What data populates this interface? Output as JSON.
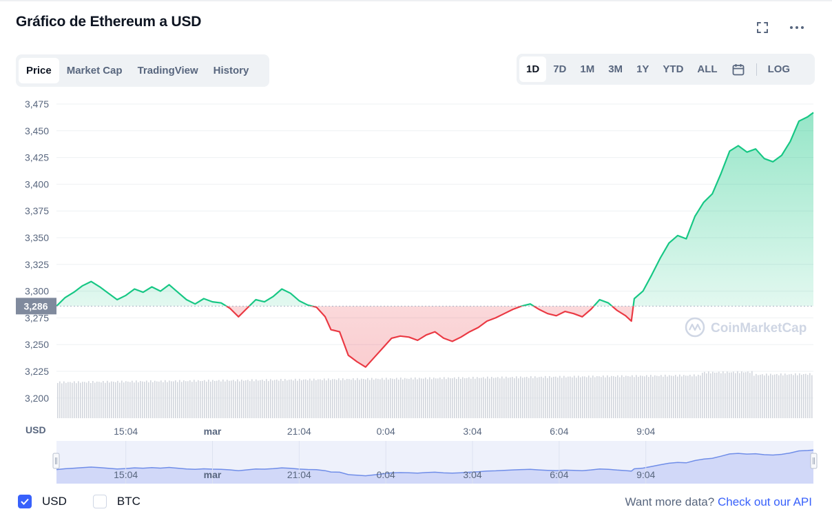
{
  "title": "Gráfico de Ethereum a USD",
  "header_icons": [
    "fullscreen-icon",
    "more-icon"
  ],
  "tabs": [
    {
      "label": "Price",
      "active": true
    },
    {
      "label": "Market Cap",
      "active": false
    },
    {
      "label": "TradingView",
      "active": false
    },
    {
      "label": "History",
      "active": false
    }
  ],
  "ranges": [
    {
      "label": "1D",
      "active": true
    },
    {
      "label": "7D",
      "active": false
    },
    {
      "label": "1M",
      "active": false
    },
    {
      "label": "3M",
      "active": false
    },
    {
      "label": "1Y",
      "active": false
    },
    {
      "label": "YTD",
      "active": false
    },
    {
      "label": "ALL",
      "active": false
    }
  ],
  "log_label": "LOG",
  "legend": {
    "usd_label": "USD",
    "btc_label": "BTC",
    "usd_checked": true,
    "btc_checked": false
  },
  "api_prompt": "Want more data?",
  "api_link": "Check out our API",
  "watermark": "CoinMarketCap",
  "colors": {
    "up": "#16c784",
    "down": "#ea3943",
    "accent": "#3861fb",
    "text_muted": "#58667e"
  },
  "chart_data": {
    "type": "line",
    "title": "Gráfico de Ethereum a USD",
    "ylabel": "USD",
    "ylim": [
      3187,
      3478
    ],
    "y_ticks": [
      "3,475",
      "3,450",
      "3,425",
      "3,400",
      "3,375",
      "3,350",
      "3,325",
      "3,300",
      "3,275",
      "3,250",
      "3,225",
      "3,200"
    ],
    "y_tick_values": [
      3475,
      3450,
      3425,
      3400,
      3375,
      3350,
      3325,
      3300,
      3275,
      3250,
      3225,
      3200
    ],
    "x_ticks": [
      "15:04",
      "mar",
      "21:04",
      "0:04",
      "3:04",
      "6:04",
      "9:04"
    ],
    "x_tick_hours": [
      2.4,
      5.4,
      8.4,
      11.4,
      14.4,
      17.4,
      20.4
    ],
    "x_range_hours": [
      0,
      24
    ],
    "baseline": 3286,
    "baseline_label": "3,286",
    "price_points": [
      [
        0,
        3286
      ],
      [
        0.3,
        3294
      ],
      [
        0.6,
        3299
      ],
      [
        0.9,
        3305
      ],
      [
        1.2,
        3309
      ],
      [
        1.5,
        3304
      ],
      [
        1.8,
        3298
      ],
      [
        2.1,
        3292
      ],
      [
        2.4,
        3296
      ],
      [
        2.7,
        3302
      ],
      [
        3.0,
        3299
      ],
      [
        3.3,
        3304
      ],
      [
        3.6,
        3300
      ],
      [
        3.9,
        3306
      ],
      [
        4.2,
        3299
      ],
      [
        4.5,
        3292
      ],
      [
        4.8,
        3288
      ],
      [
        5.1,
        3293
      ],
      [
        5.4,
        3290
      ],
      [
        5.7,
        3289
      ],
      [
        6.0,
        3284
      ],
      [
        6.3,
        3276
      ],
      [
        6.6,
        3284
      ],
      [
        6.9,
        3292
      ],
      [
        7.2,
        3290
      ],
      [
        7.5,
        3295
      ],
      [
        7.8,
        3302
      ],
      [
        8.1,
        3298
      ],
      [
        8.4,
        3291
      ],
      [
        8.7,
        3287
      ],
      [
        9.0,
        3285
      ],
      [
        9.3,
        3276
      ],
      [
        9.5,
        3264
      ],
      [
        9.8,
        3262
      ],
      [
        10.1,
        3240
      ],
      [
        10.4,
        3234
      ],
      [
        10.7,
        3229
      ],
      [
        11.0,
        3238
      ],
      [
        11.3,
        3247
      ],
      [
        11.6,
        3256
      ],
      [
        11.9,
        3258
      ],
      [
        12.2,
        3257
      ],
      [
        12.5,
        3254
      ],
      [
        12.8,
        3259
      ],
      [
        13.1,
        3262
      ],
      [
        13.4,
        3256
      ],
      [
        13.7,
        3253
      ],
      [
        14.0,
        3257
      ],
      [
        14.3,
        3262
      ],
      [
        14.6,
        3266
      ],
      [
        14.9,
        3272
      ],
      [
        15.2,
        3275
      ],
      [
        15.5,
        3279
      ],
      [
        15.8,
        3283
      ],
      [
        16.1,
        3286
      ],
      [
        16.4,
        3288
      ],
      [
        16.7,
        3283
      ],
      [
        17.0,
        3279
      ],
      [
        17.3,
        3277
      ],
      [
        17.6,
        3281
      ],
      [
        17.9,
        3279
      ],
      [
        18.2,
        3276
      ],
      [
        18.5,
        3283
      ],
      [
        18.8,
        3292
      ],
      [
        19.1,
        3289
      ],
      [
        19.4,
        3282
      ],
      [
        19.7,
        3277
      ],
      [
        19.9,
        3272
      ],
      [
        20.0,
        3293
      ],
      [
        20.3,
        3300
      ],
      [
        20.6,
        3315
      ],
      [
        20.9,
        3331
      ],
      [
        21.2,
        3345
      ],
      [
        21.5,
        3352
      ],
      [
        21.8,
        3349
      ],
      [
        22.1,
        3370
      ],
      [
        22.4,
        3383
      ],
      [
        22.7,
        3391
      ],
      [
        23.0,
        3410
      ],
      [
        23.3,
        3431
      ],
      [
        23.6,
        3436
      ],
      [
        23.9,
        3430
      ],
      [
        24.2,
        3433
      ],
      [
        24.5,
        3424
      ],
      [
        24.8,
        3421
      ],
      [
        25.1,
        3427
      ],
      [
        25.4,
        3440
      ],
      [
        25.7,
        3459
      ],
      [
        26.0,
        3463
      ],
      [
        26.2,
        3467
      ]
    ],
    "x_extent_hours": [
      0,
      26.2
    ]
  }
}
